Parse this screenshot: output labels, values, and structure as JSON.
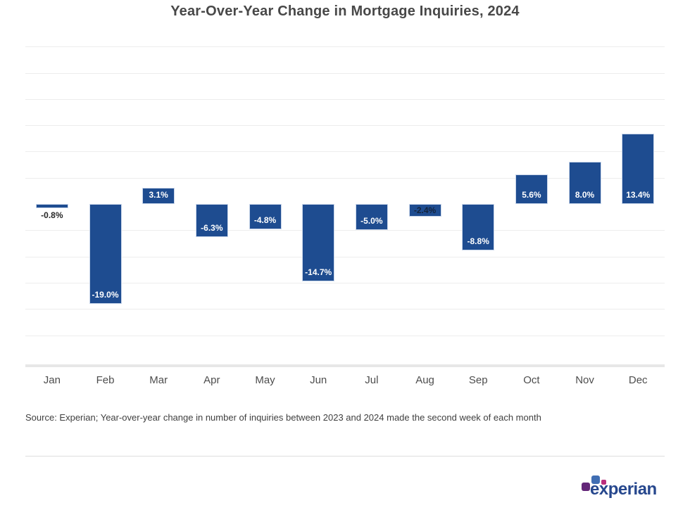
{
  "source_note": "Source: Experian; Year-over-year change in number of inquiries between 2023 and 2024 made the second week of each month",
  "logo": {
    "wordmark": "experian",
    "square_purple": "#632678",
    "square_blue": "#406EB3",
    "square_pink": "#BA2F7D",
    "wordmark_color": "#26478D"
  },
  "colors": {
    "bar": "#1E4C90",
    "bar_border": "#c9d6ea",
    "label_white": "#ffffff",
    "label_dark": "#13233c",
    "label_outside_dark": "#262626",
    "gridline": "#ededed",
    "axis_line": "#e7e7e7"
  },
  "chart_data": {
    "type": "bar",
    "title": "Year-Over-Year Change in Mortgage Inquiries, 2024",
    "categories": [
      "Jan",
      "Feb",
      "Mar",
      "Apr",
      "May",
      "Jun",
      "Jul",
      "Aug",
      "Sep",
      "Oct",
      "Nov",
      "Dec"
    ],
    "values": [
      -0.8,
      -19.0,
      3.1,
      -6.3,
      -4.8,
      -14.7,
      -5.0,
      -2.4,
      -8.8,
      5.6,
      8.0,
      13.4
    ],
    "labels": [
      "-0.8%",
      "-19.0%",
      "3.1%",
      "-6.3%",
      "-4.8%",
      "-14.7%",
      "-5.0%",
      "-2.4%",
      "-8.8%",
      "5.6%",
      "8.0%",
      "13.4%"
    ],
    "xlabel": "",
    "ylabel": "",
    "ylim": [
      -31,
      31.5
    ],
    "grid": true,
    "gridline_values": [
      30,
      25,
      20,
      15,
      10,
      5,
      -5,
      -10,
      -15,
      -20,
      -25
    ],
    "y_tick_labels_shown": false,
    "legend": false,
    "data_label_position_note": "labels inside bar near end away from extreme for tall bars (white), inside top dark for Aug, below bar dark for Jan"
  }
}
